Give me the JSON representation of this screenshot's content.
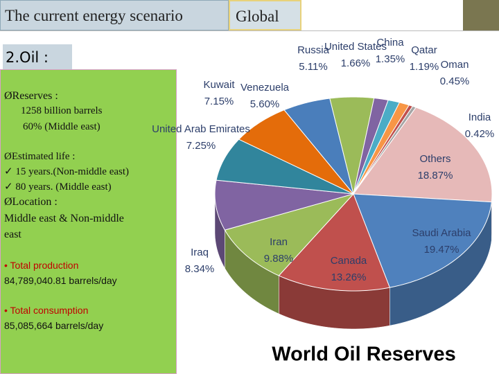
{
  "header": {
    "title": "The current energy scenario",
    "tab": "Global"
  },
  "section": "2.Oil :",
  "notes": [
    "ØReserves :",
    "1258 billion barrels",
    "60% (Middle east)",
    "ØEstimated life :",
    "✓ 15 years.(Non-middle east)",
    "✓  80 years. (Middle east)",
    "ØLocation :",
    "Middle east & Non-middle",
    "east",
    "• Total production",
    "84,789,040.81 barrels/day",
    "• Total consumption",
    "85,085,664 barrels/day"
  ],
  "chart_data": {
    "type": "pie",
    "title": "World Oil Reserves",
    "categories": [
      "Venezuela",
      "Russia",
      "United States",
      "China",
      "Qatar",
      "Oman",
      "India",
      "Others",
      "Saudi Arabia",
      "Canada",
      "Iran",
      "Iraq",
      "United Arab Emirates",
      "Kuwait"
    ],
    "values": [
      5.6,
      5.11,
      1.66,
      1.35,
      1.19,
      0.45,
      0.42,
      18.87,
      19.47,
      13.26,
      9.88,
      8.34,
      7.25,
      7.15
    ],
    "value_labels": [
      "5.60%",
      "5.11%",
      "1.66%",
      "1.35%",
      "1.19%",
      "0.45%",
      "0.42%",
      "18.87%",
      "19.47%",
      "13.26%",
      "9.88%",
      "8.34%",
      "7.25%",
      "7.15%"
    ],
    "colors": [
      "#4a7ebb",
      "#9bbb59",
      "#8064a2",
      "#4bacc6",
      "#f79646",
      "#c0504d",
      "#a5a5a5",
      "#e6b9b8",
      "#4f81bd",
      "#c0504d",
      "#9bbb59",
      "#8064a2",
      "#31859c",
      "#e46c0a"
    ]
  }
}
